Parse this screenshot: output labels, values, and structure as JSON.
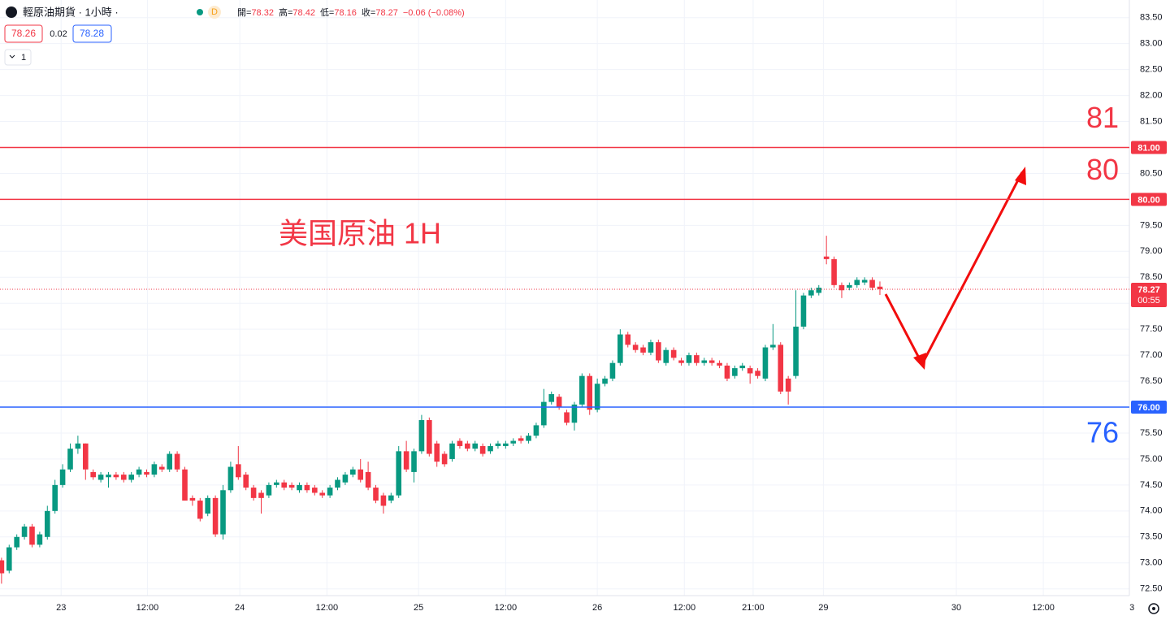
{
  "chart_data": {
    "type": "candlestick",
    "header": {
      "title": "輕原油期貨 · 1小時 ·",
      "badge": "D",
      "ohlc": [
        {
          "label": "開=",
          "value": "78.32"
        },
        {
          "label": "高=",
          "value": "78.42"
        },
        {
          "label": "低=",
          "value": "78.16"
        },
        {
          "label": "收=",
          "value": "78.27"
        }
      ],
      "change": "−0.06 (−0.08%)",
      "bid": "78.26",
      "spread": "0.02",
      "ask": "78.28",
      "indicators": "1"
    },
    "annotation": "美国原油 1H",
    "up_color": "#089981",
    "down_color": "#f23645",
    "grid": true,
    "xlim": [
      -0.2,
      147.66
    ],
    "xticks": [
      {
        "value": 7.8,
        "label": "23"
      },
      {
        "value": 19.1,
        "label": "12:00"
      },
      {
        "value": 31.2,
        "label": "24"
      },
      {
        "value": 42.6,
        "label": "12:00"
      },
      {
        "value": 54.6,
        "label": "25"
      },
      {
        "value": 66.0,
        "label": "12:00"
      },
      {
        "value": 78.0,
        "label": "26"
      },
      {
        "value": 89.4,
        "label": "12:00"
      },
      {
        "value": 98.4,
        "label": "21:00"
      },
      {
        "value": 107.6,
        "label": "29"
      },
      {
        "value": 125.0,
        "label": "30"
      },
      {
        "value": 136.4,
        "label": "12:00"
      },
      {
        "value": 148.0,
        "label": "3"
      }
    ],
    "ylim": [
      72.37,
      83.84
    ],
    "yticks": [
      {
        "value": 72.5,
        "label": "72.50"
      },
      {
        "value": 73,
        "label": "73.00"
      },
      {
        "value": 73.5,
        "label": "73.50"
      },
      {
        "value": 74,
        "label": "74.00"
      },
      {
        "value": 74.5,
        "label": "74.50"
      },
      {
        "value": 75,
        "label": "75.00"
      },
      {
        "value": 75.5,
        "label": "75.50"
      },
      {
        "value": 76.5,
        "label": "76.50"
      },
      {
        "value": 77,
        "label": "77.00"
      },
      {
        "value": 77.5,
        "label": "77.50"
      },
      {
        "value": 78,
        "label": "78.00"
      },
      {
        "value": 78.5,
        "label": "78.50"
      },
      {
        "value": 79,
        "label": "79.00"
      },
      {
        "value": 79.5,
        "label": "79.50"
      },
      {
        "value": 80.5,
        "label": "80.50"
      },
      {
        "value": 81.5,
        "label": "81.50"
      },
      {
        "value": 82,
        "label": "82.00"
      },
      {
        "value": 82.5,
        "label": "82.50"
      },
      {
        "value": 83,
        "label": "83.00"
      },
      {
        "value": 83.5,
        "label": "83.50"
      }
    ],
    "levels": [
      {
        "value": 81,
        "label": "81.00",
        "text": "81",
        "color": "#f23645"
      },
      {
        "value": 80,
        "label": "80.00",
        "text": "80",
        "color": "#f23645"
      },
      {
        "value": 76,
        "label": "76.00",
        "text": "76",
        "color": "#2962ff"
      }
    ],
    "current": {
      "value": 78.27,
      "label": "78.27",
      "countdown": "00:55"
    },
    "ohlc": [
      [
        73.05,
        73.1,
        72.6,
        72.8
      ],
      [
        72.85,
        73.35,
        72.8,
        73.3
      ],
      [
        73.3,
        73.55,
        73.25,
        73.5
      ],
      [
        73.5,
        73.75,
        73.45,
        73.7
      ],
      [
        73.7,
        73.75,
        73.3,
        73.35
      ],
      [
        73.35,
        73.6,
        73.3,
        73.55
      ],
      [
        73.5,
        74.1,
        73.45,
        74.0
      ],
      [
        74.0,
        74.6,
        73.95,
        74.5
      ],
      [
        74.5,
        74.9,
        74.45,
        74.8
      ],
      [
        74.8,
        75.3,
        74.75,
        75.2
      ],
      [
        75.2,
        75.45,
        75.1,
        75.3
      ],
      [
        75.3,
        75.3,
        74.6,
        74.8
      ],
      [
        74.75,
        74.8,
        74.6,
        74.65
      ],
      [
        74.6,
        74.75,
        74.55,
        74.7
      ],
      [
        74.65,
        74.75,
        74.45,
        74.7
      ],
      [
        74.7,
        74.75,
        74.6,
        74.65
      ],
      [
        74.7,
        74.75,
        74.55,
        74.6
      ],
      [
        74.6,
        74.75,
        74.55,
        74.7
      ],
      [
        74.7,
        74.85,
        74.65,
        74.8
      ],
      [
        74.75,
        74.8,
        74.65,
        74.7
      ],
      [
        74.7,
        74.95,
        74.65,
        74.9
      ],
      [
        74.85,
        74.9,
        74.75,
        74.8
      ],
      [
        74.8,
        75.15,
        74.75,
        75.1
      ],
      [
        75.1,
        75.15,
        74.75,
        74.8
      ],
      [
        74.8,
        74.85,
        74.2,
        74.2
      ],
      [
        74.25,
        74.3,
        74.1,
        74.2
      ],
      [
        74.2,
        74.25,
        73.8,
        73.85
      ],
      [
        73.95,
        74.3,
        73.9,
        74.25
      ],
      [
        74.25,
        74.3,
        73.5,
        73.55
      ],
      [
        73.55,
        74.5,
        73.45,
        74.4
      ],
      [
        74.4,
        74.95,
        74.35,
        74.85
      ],
      [
        74.9,
        75.25,
        74.6,
        74.65
      ],
      [
        74.7,
        74.75,
        74.4,
        74.45
      ],
      [
        74.45,
        74.5,
        74.2,
        74.25
      ],
      [
        74.35,
        74.4,
        73.95,
        74.25
      ],
      [
        74.3,
        74.55,
        74.25,
        74.5
      ],
      [
        74.5,
        74.6,
        74.45,
        74.55
      ],
      [
        74.55,
        74.6,
        74.4,
        74.45
      ],
      [
        74.5,
        74.55,
        74.4,
        74.45
      ],
      [
        74.4,
        74.55,
        74.35,
        74.5
      ],
      [
        74.5,
        74.55,
        74.35,
        74.4
      ],
      [
        74.45,
        74.5,
        74.3,
        74.35
      ],
      [
        74.35,
        74.4,
        74.25,
        74.3
      ],
      [
        74.3,
        74.5,
        74.25,
        74.45
      ],
      [
        74.45,
        74.65,
        74.4,
        74.6
      ],
      [
        74.55,
        74.75,
        74.5,
        74.7
      ],
      [
        74.7,
        74.85,
        74.65,
        74.8
      ],
      [
        74.8,
        75.0,
        74.55,
        74.6
      ],
      [
        74.75,
        74.95,
        74.4,
        74.45
      ],
      [
        74.45,
        74.5,
        74.15,
        74.2
      ],
      [
        74.3,
        74.35,
        73.95,
        74.1
      ],
      [
        74.2,
        74.35,
        74.15,
        74.3
      ],
      [
        74.3,
        75.25,
        74.25,
        75.15
      ],
      [
        75.15,
        75.35,
        74.75,
        74.8
      ],
      [
        74.75,
        75.2,
        74.55,
        75.15
      ],
      [
        75.15,
        75.85,
        75.1,
        75.75
      ],
      [
        75.75,
        75.8,
        75.05,
        75.1
      ],
      [
        75.3,
        75.35,
        74.85,
        74.95
      ],
      [
        75.1,
        75.15,
        74.85,
        74.9
      ],
      [
        75.0,
        75.35,
        74.95,
        75.3
      ],
      [
        75.35,
        75.4,
        75.2,
        75.25
      ],
      [
        75.3,
        75.35,
        75.15,
        75.2
      ],
      [
        75.2,
        75.35,
        75.15,
        75.3
      ],
      [
        75.25,
        75.3,
        75.05,
        75.1
      ],
      [
        75.15,
        75.3,
        75.1,
        75.25
      ],
      [
        75.25,
        75.35,
        75.2,
        75.3
      ],
      [
        75.25,
        75.35,
        75.2,
        75.3
      ],
      [
        75.3,
        75.4,
        75.25,
        75.35
      ],
      [
        75.4,
        75.45,
        75.3,
        75.35
      ],
      [
        75.35,
        75.5,
        75.3,
        75.45
      ],
      [
        75.45,
        75.7,
        75.4,
        75.65
      ],
      [
        75.65,
        76.35,
        75.6,
        76.1
      ],
      [
        76.1,
        76.3,
        76.05,
        76.25
      ],
      [
        76.2,
        76.25,
        75.95,
        76.0
      ],
      [
        75.9,
        75.95,
        75.65,
        75.7
      ],
      [
        75.7,
        76.1,
        75.55,
        76.05
      ],
      [
        76.05,
        76.65,
        76.0,
        76.6
      ],
      [
        76.6,
        76.65,
        75.85,
        75.95
      ],
      [
        75.95,
        76.55,
        75.9,
        76.45
      ],
      [
        76.45,
        76.6,
        76.4,
        76.55
      ],
      [
        76.55,
        76.9,
        76.5,
        76.85
      ],
      [
        76.85,
        77.5,
        76.8,
        77.4
      ],
      [
        77.4,
        77.45,
        77.15,
        77.2
      ],
      [
        77.2,
        77.25,
        77.05,
        77.1
      ],
      [
        77.15,
        77.2,
        77.0,
        77.05
      ],
      [
        77.05,
        77.3,
        77.0,
        77.25
      ],
      [
        77.25,
        77.3,
        76.85,
        76.9
      ],
      [
        76.85,
        77.15,
        76.8,
        77.1
      ],
      [
        77.1,
        77.15,
        76.9,
        76.95
      ],
      [
        76.9,
        76.95,
        76.8,
        76.85
      ],
      [
        76.85,
        77.05,
        76.8,
        77.0
      ],
      [
        77.0,
        77.05,
        76.8,
        76.85
      ],
      [
        76.85,
        76.95,
        76.8,
        76.9
      ],
      [
        76.9,
        76.95,
        76.8,
        76.85
      ],
      [
        76.85,
        76.9,
        76.75,
        76.8
      ],
      [
        76.8,
        76.85,
        76.5,
        76.55
      ],
      [
        76.6,
        76.8,
        76.55,
        76.75
      ],
      [
        76.75,
        76.85,
        76.7,
        76.8
      ],
      [
        76.75,
        76.8,
        76.45,
        76.65
      ],
      [
        76.7,
        76.75,
        76.55,
        76.6
      ],
      [
        76.55,
        77.2,
        76.5,
        77.15
      ],
      [
        77.15,
        77.6,
        77.1,
        77.2
      ],
      [
        77.2,
        77.25,
        76.25,
        76.3
      ],
      [
        76.55,
        76.6,
        76.05,
        76.3
      ],
      [
        76.6,
        78.25,
        76.55,
        77.55
      ],
      [
        77.55,
        78.2,
        77.5,
        78.15
      ],
      [
        78.15,
        78.3,
        78.1,
        78.25
      ],
      [
        78.2,
        78.35,
        78.15,
        78.3
      ],
      [
        78.9,
        79.3,
        78.75,
        78.85
      ],
      [
        78.85,
        78.9,
        78.3,
        78.35
      ],
      [
        78.35,
        78.4,
        78.1,
        78.25
      ],
      [
        78.3,
        78.4,
        78.25,
        78.35
      ],
      [
        78.35,
        78.5,
        78.3,
        78.45
      ],
      [
        78.4,
        78.5,
        78.35,
        78.45
      ],
      [
        78.45,
        78.5,
        78.25,
        78.3
      ],
      [
        78.32,
        78.42,
        78.16,
        78.27
      ]
    ]
  }
}
